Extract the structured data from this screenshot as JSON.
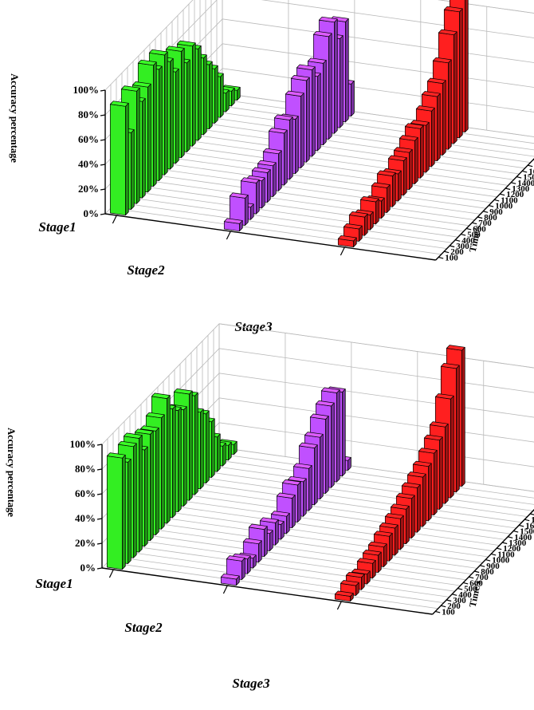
{
  "chart_data": [
    {
      "type": "bar",
      "ylabel": "Accuracy percentage",
      "zlabel": "Time/s",
      "yticks": [
        "0%",
        "20%",
        "40%",
        "60%",
        "80%",
        "100%"
      ],
      "ylim": [
        0,
        100
      ],
      "time_ticks": [
        "100",
        "200",
        "300",
        "400",
        "500",
        "600",
        "700",
        "800",
        "900",
        "1000",
        "1100",
        "1200",
        "1300",
        "1400",
        "1500",
        "1600",
        "1700",
        "1800",
        "1900",
        "2000",
        "2043"
      ],
      "grid": true,
      "series": [
        {
          "name": "Stage1",
          "color": "#33ee22",
          "values": [
            88,
            62,
            91,
            78,
            85,
            98,
            90,
            97,
            87,
            74,
            86,
            72,
            81,
            74,
            62,
            52,
            44,
            33,
            15,
            12,
            8
          ]
        },
        {
          "name": "Stage2",
          "color": "#c050ff",
          "values": [
            6,
            22,
            10,
            25,
            22,
            24,
            25,
            30,
            42,
            48,
            44,
            58,
            66,
            70,
            60,
            66,
            83,
            90,
            72,
            81,
            26
          ]
        },
        {
          "name": "Stage3",
          "color": "#ff1f1f",
          "values": [
            5,
            10,
            15,
            12,
            18,
            14,
            20,
            25,
            22,
            28,
            30,
            35,
            40,
            38,
            45,
            52,
            58,
            70,
            88,
            102,
            108
          ]
        }
      ]
    },
    {
      "type": "bar",
      "ylabel": "Accuracy percentage",
      "zlabel": "Time/s",
      "yticks": [
        "0%",
        "20%",
        "40%",
        "60%",
        "80%",
        "100%"
      ],
      "ylim": [
        0,
        100
      ],
      "time_ticks": [
        "100",
        "200",
        "300",
        "400",
        "500",
        "600",
        "700",
        "800",
        "900",
        "1000",
        "1100",
        "1200",
        "1300",
        "1400",
        "1500",
        "1600",
        "1700",
        "1800",
        "1900",
        "2000",
        "2043"
      ],
      "grid": true,
      "series": [
        {
          "name": "Stage1",
          "color": "#33ee22",
          "values": [
            90,
            82,
            90,
            92,
            78,
            86,
            84,
            90,
            101,
            88,
            82,
            78,
            86,
            80,
            62,
            56,
            45,
            28,
            16,
            12,
            8
          ]
        },
        {
          "name": "Stage2",
          "color": "#c050ff",
          "values": [
            5,
            15,
            12,
            8,
            15,
            22,
            14,
            18,
            12,
            14,
            24,
            30,
            28,
            34,
            46,
            50,
            60,
            66,
            72,
            68,
            8
          ]
        },
        {
          "name": "Stage3",
          "color": "#ff1f1f",
          "values": [
            4,
            8,
            10,
            8,
            12,
            14,
            16,
            20,
            22,
            25,
            28,
            32,
            36,
            40,
            44,
            50,
            56,
            62,
            80,
            100,
            110
          ]
        }
      ]
    }
  ]
}
